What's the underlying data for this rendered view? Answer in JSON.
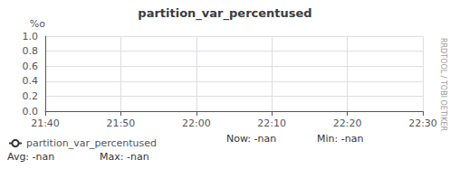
{
  "chart_data": {
    "type": "line",
    "title": "partition_var_percentused",
    "ylabel": "%o",
    "categories": [
      "21:40",
      "21:50",
      "22:00",
      "22:10",
      "22:20",
      "22:30"
    ],
    "series": [
      {
        "name": "partition_var_percentused",
        "color": "#333333",
        "values": [
          null,
          null,
          null,
          null,
          null,
          null
        ]
      }
    ],
    "ylim": [
      0.0,
      1.0
    ],
    "yticks": [
      {
        "value": 0.0,
        "label": "0.0"
      },
      0.2,
      0.4,
      0.6,
      0.8,
      {
        "value": 1.0,
        "label": "1.0"
      }
    ],
    "grid": true,
    "legend": "bottom",
    "annotations": [
      "Now: -nan",
      "Min: -nan",
      "Avg: -nan",
      "Max: -nan",
      "RRDTOOL / TOBI OETIKER"
    ]
  }
}
